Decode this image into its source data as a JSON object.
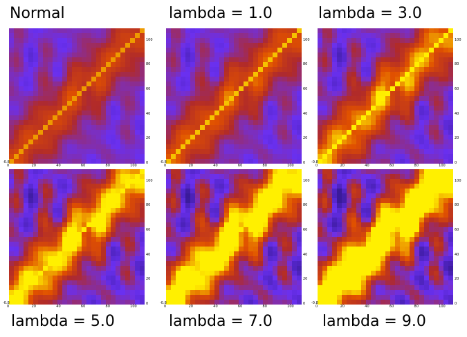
{
  "chart_data": [
    {
      "type": "heatmap",
      "title": "Normal",
      "x_ticks": [
        "0",
        "20",
        "40",
        "60",
        "80",
        "100"
      ],
      "y_ticks": [
        "0",
        "20",
        "40",
        "60",
        "80",
        "100"
      ],
      "origin_label": "-0.8",
      "lambda": 0
    },
    {
      "type": "heatmap",
      "title": "lambda = 1.0",
      "x_ticks": [
        "0",
        "20",
        "40",
        "60",
        "80",
        "100"
      ],
      "y_ticks": [
        "0",
        "20",
        "40",
        "60",
        "80",
        "100"
      ],
      "origin_label": "-0.8",
      "lambda": 1.0
    },
    {
      "type": "heatmap",
      "title": "lambda = 3.0",
      "x_ticks": [
        "0",
        "20",
        "40",
        "60",
        "80",
        "100"
      ],
      "y_ticks": [
        "0",
        "20",
        "40",
        "60",
        "80",
        "100"
      ],
      "origin_label": "-0.8",
      "lambda": 3.0
    },
    {
      "type": "heatmap",
      "title": "lambda = 5.0",
      "x_ticks": [
        "0",
        "20",
        "40",
        "60",
        "80",
        "100"
      ],
      "y_ticks": [
        "0",
        "20",
        "40",
        "60",
        "80",
        "100"
      ],
      "origin_label": "-0.8",
      "lambda": 5.0
    },
    {
      "type": "heatmap",
      "title": "lambda = 7.0",
      "x_ticks": [
        "0",
        "20",
        "40",
        "60",
        "80",
        "100"
      ],
      "y_ticks": [
        "0",
        "20",
        "40",
        "60",
        "80",
        "100"
      ],
      "origin_label": "-0.8",
      "lambda": 7.0
    },
    {
      "type": "heatmap",
      "title": "lambda = 9.0",
      "x_ticks": [
        "0",
        "20",
        "40",
        "60",
        "80",
        "100"
      ],
      "y_ticks": [
        "0",
        "20",
        "40",
        "60",
        "80",
        "100"
      ],
      "origin_label": "-0.8",
      "lambda": 9.0
    }
  ],
  "colors": {
    "low": "#3a1a9a",
    "mid_low": "#6a30f0",
    "mid": "#b02a2a",
    "high": "#e05000",
    "peak": "#fff000"
  },
  "xlim": [
    0,
    110
  ],
  "ylim": [
    0,
    110
  ]
}
